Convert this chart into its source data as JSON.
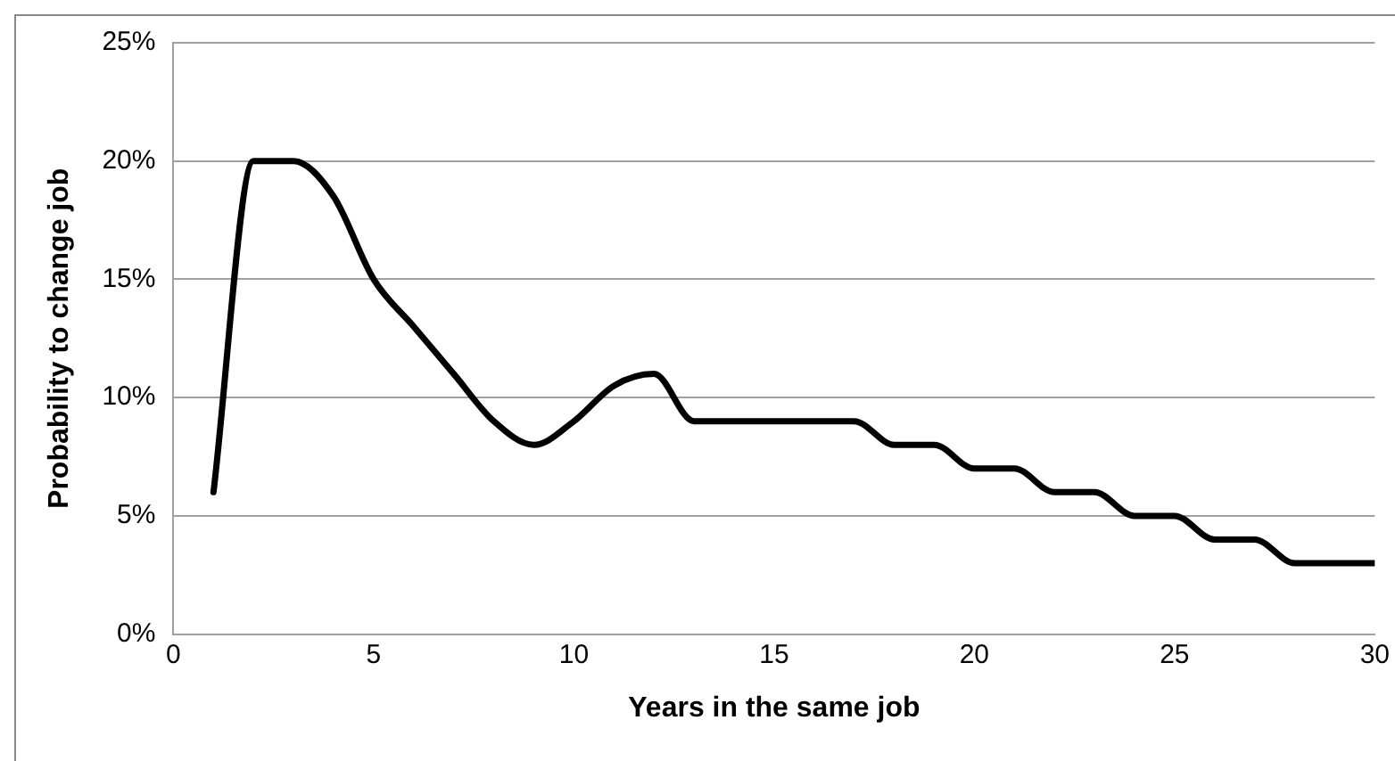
{
  "chart_data": {
    "type": "line",
    "xlabel": "Years in the same job",
    "ylabel": "Probability to change job",
    "x": [
      1,
      2,
      3,
      4,
      5,
      6,
      7,
      8,
      9,
      10,
      11,
      12,
      13,
      14,
      15,
      16,
      17,
      18,
      19,
      20,
      21,
      22,
      23,
      24,
      25,
      26,
      27,
      28,
      29,
      30
    ],
    "series": [
      {
        "color": "#000000",
        "values": [
          6,
          20,
          20,
          18.5,
          15,
          13,
          11,
          9,
          8,
          9,
          10.5,
          11,
          9,
          9,
          9,
          9,
          9,
          8,
          8,
          7,
          7,
          6,
          6,
          5,
          5,
          4,
          4,
          3,
          3,
          3
        ]
      }
    ],
    "xlim": [
      0,
      30
    ],
    "xticks": [
      0,
      5,
      10,
      15,
      20,
      25,
      30
    ],
    "ylim": [
      0,
      25
    ],
    "yticks": [
      {
        "value": 0,
        "label": "0%"
      },
      {
        "value": 5,
        "label": "5%"
      },
      {
        "value": 10,
        "label": "10%"
      },
      {
        "value": 15,
        "label": "15%"
      },
      {
        "value": 20,
        "label": "20%"
      },
      {
        "value": 25,
        "label": "25%"
      }
    ],
    "grid": "y",
    "legend": false,
    "marker": "none",
    "line_style": "solid"
  }
}
